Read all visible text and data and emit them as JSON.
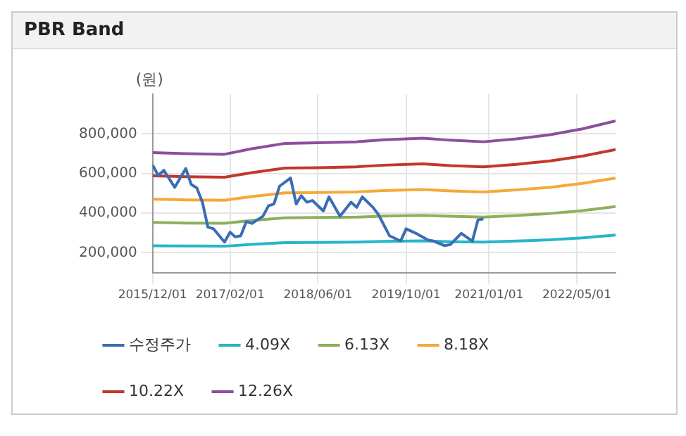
{
  "chart_data": {
    "type": "line",
    "title": "PBR Band",
    "ylabel": "(원)",
    "xlim": [
      "2015-12-01",
      "2022-12-01"
    ],
    "xticks": [
      {
        "value": "2015-12-01",
        "label": "2015/12/01"
      },
      {
        "value": "2017-02-01",
        "label": "2017/02/01"
      },
      {
        "value": "2018-06-01",
        "label": "2018/06/01"
      },
      {
        "value": "2019-10-01",
        "label": "2019/10/01"
      },
      {
        "value": "2021-01-01",
        "label": "2021/01/01"
      },
      {
        "value": "2022-05-01",
        "label": "2022/05/01"
      }
    ],
    "ylim": [
      100000,
      1000000
    ],
    "yticks": [
      {
        "value": 200000,
        "label": "200,000"
      },
      {
        "value": 400000,
        "label": "400,000"
      },
      {
        "value": 600000,
        "label": "600,000"
      },
      {
        "value": 800000,
        "label": "800,000"
      }
    ],
    "grid": true,
    "legend": "bottom",
    "marker": "none",
    "line_style": "solid",
    "series": [
      {
        "name": "수정주가",
        "color": "#3a6db5",
        "x": [
          "2015-12-01",
          "2016-01-01",
          "2016-02-01",
          "2016-04-01",
          "2016-06-01",
          "2016-07-01",
          "2016-08-01",
          "2016-09-01",
          "2016-10-01",
          "2016-11-01",
          "2017-01-01",
          "2017-02-01",
          "2017-03-01",
          "2017-04-01",
          "2017-05-01",
          "2017-06-01",
          "2017-08-01",
          "2017-09-01",
          "2017-10-01",
          "2017-11-01",
          "2018-01-01",
          "2018-02-01",
          "2018-03-01",
          "2018-04-01",
          "2018-05-01",
          "2018-07-01",
          "2018-08-01",
          "2018-10-01",
          "2018-12-01",
          "2019-01-01",
          "2019-02-01",
          "2019-04-01",
          "2019-05-01",
          "2019-07-01",
          "2019-09-01",
          "2019-10-01",
          "2019-12-01",
          "2020-02-01",
          "2020-03-01",
          "2020-05-01",
          "2020-06-01",
          "2020-08-01",
          "2020-10-01",
          "2020-11-01",
          "2020-12-01"
        ],
        "values": [
          643000,
          590000,
          616000,
          530000,
          625000,
          545000,
          527000,
          455000,
          330000,
          321000,
          254000,
          304000,
          280000,
          286000,
          357000,
          348000,
          384000,
          437000,
          446000,
          536000,
          577000,
          446000,
          488000,
          455000,
          464000,
          411000,
          482000,
          384000,
          455000,
          429000,
          482000,
          429000,
          393000,
          286000,
          259000,
          321000,
          295000,
          264000,
          259000,
          236000,
          241000,
          298000,
          259000,
          366000,
          371000
        ]
      },
      {
        "name": "4.09X",
        "color": "#27b5c7",
        "values": [
          235000,
          234000,
          233000,
          242000,
          251000,
          252000,
          254000,
          257000,
          260000,
          256000,
          254000,
          259000,
          265000,
          275000,
          289000
        ]
      },
      {
        "name": "6.13X",
        "color": "#8db05a",
        "values": [
          353000,
          350000,
          349000,
          363000,
          376000,
          378000,
          380000,
          385000,
          389000,
          384000,
          380000,
          388000,
          398000,
          413000,
          433000
        ]
      },
      {
        "name": "8.18X",
        "color": "#f5a93a",
        "values": [
          470000,
          467000,
          465000,
          484000,
          502000,
          504000,
          507000,
          514000,
          519000,
          512000,
          507000,
          517000,
          530000,
          550000,
          577000
        ]
      },
      {
        "name": "10.22X",
        "color": "#c0392b",
        "values": [
          588000,
          584000,
          581000,
          604000,
          627000,
          629000,
          634000,
          642000,
          649000,
          640000,
          634000,
          646000,
          663000,
          688000,
          721000
        ]
      },
      {
        "name": "12.26X",
        "color": "#8e4e9e",
        "values": [
          705000,
          700000,
          697000,
          725000,
          752000,
          755000,
          760000,
          770000,
          778000,
          768000,
          760000,
          775000,
          795000,
          825000,
          865000
        ]
      }
    ],
    "x": [
      "2015-12-01",
      "2016-06-01",
      "2017-01-01",
      "2017-06-01",
      "2017-12-01",
      "2018-06-01",
      "2019-01-01",
      "2019-06-01",
      "2020-01-01",
      "2020-06-01",
      "2020-12-01",
      "2021-06-01",
      "2021-12-01",
      "2022-06-01",
      "2022-12-01"
    ]
  }
}
